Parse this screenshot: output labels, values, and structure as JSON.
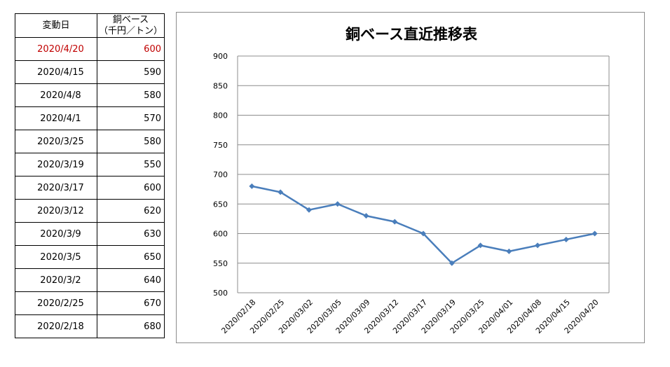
{
  "table": {
    "header": {
      "date": "変動日",
      "price_line1": "銅ベース",
      "price_line2": "（千円／トン）"
    },
    "highlight_color": "#c00000",
    "rows": [
      {
        "date": "2020/4/20",
        "price": "600"
      },
      {
        "date": "2020/4/15",
        "price": "590"
      },
      {
        "date": "2020/4/8",
        "price": "580"
      },
      {
        "date": "2020/4/1",
        "price": "570"
      },
      {
        "date": "2020/3/25",
        "price": "580"
      },
      {
        "date": "2020/3/19",
        "price": "550"
      },
      {
        "date": "2020/3/17",
        "price": "600"
      },
      {
        "date": "2020/3/12",
        "price": "620"
      },
      {
        "date": "2020/3/9",
        "price": "630"
      },
      {
        "date": "2020/3/5",
        "price": "650"
      },
      {
        "date": "2020/3/2",
        "price": "640"
      },
      {
        "date": "2020/2/25",
        "price": "670"
      },
      {
        "date": "2020/2/18",
        "price": "680"
      }
    ]
  },
  "chart_data": {
    "type": "line",
    "title": "銅ベース直近推移表",
    "xlabel": "",
    "ylabel": "",
    "categories": [
      "2020/02/18",
      "2020/02/25",
      "2020/03/02",
      "2020/03/05",
      "2020/03/09",
      "2020/03/12",
      "2020/03/17",
      "2020/03/19",
      "2020/03/25",
      "2020/04/01",
      "2020/04/08",
      "2020/04/15",
      "2020/04/20"
    ],
    "series": [
      {
        "values": [
          680,
          670,
          640,
          650,
          630,
          620,
          600,
          550,
          580,
          570,
          580,
          590,
          600
        ],
        "color": "#4a7ebb",
        "marker": "diamond"
      }
    ],
    "ylim": [
      500,
      900
    ],
    "yticks": [
      500,
      550,
      600,
      650,
      700,
      750,
      800,
      850,
      900
    ],
    "grid": true,
    "legend": "none"
  }
}
